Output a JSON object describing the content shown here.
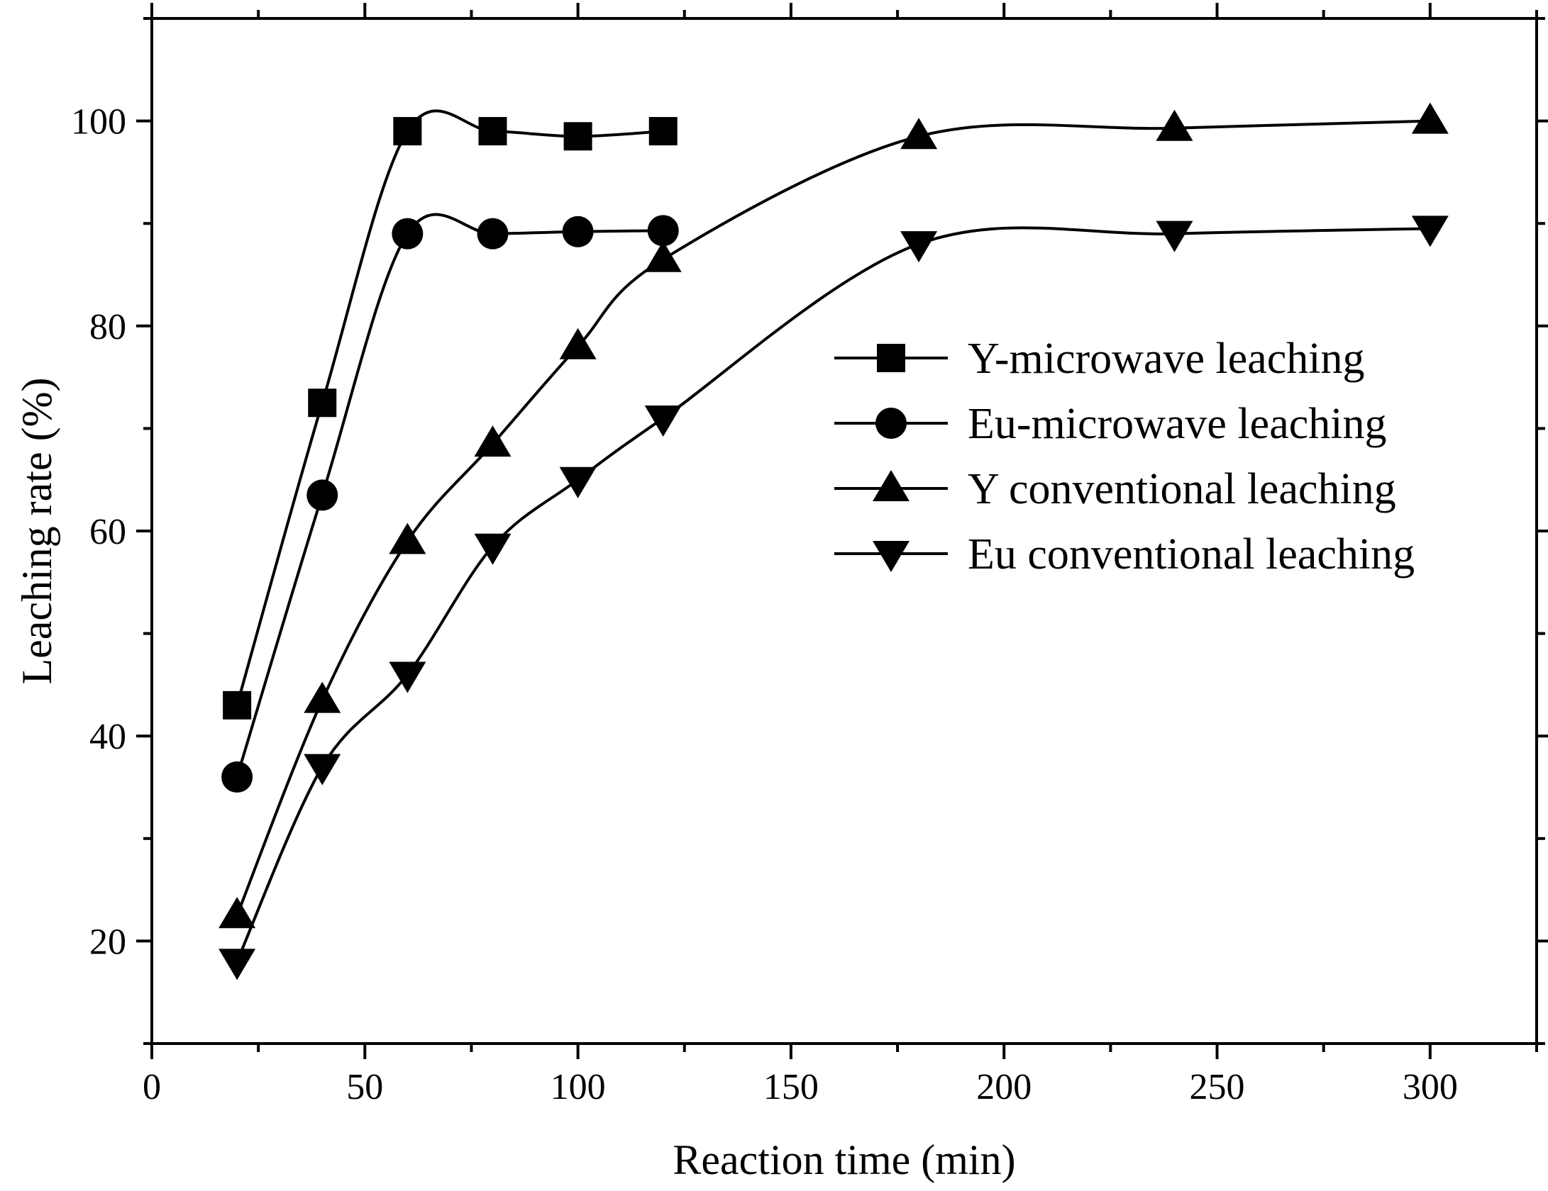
{
  "chart_data": {
    "type": "line",
    "title": "",
    "xlabel": "Reaction time (min)",
    "ylabel": "Leaching rate (%)",
    "xlim": [
      0,
      325
    ],
    "ylim": [
      10,
      110
    ],
    "x_ticks": [
      0,
      50,
      100,
      150,
      200,
      250,
      300
    ],
    "y_ticks": [
      20,
      40,
      60,
      80,
      100
    ],
    "x_tick_labels": [
      "0",
      "50",
      "100",
      "150",
      "200",
      "250",
      "300"
    ],
    "y_tick_labels": [
      "20",
      "40",
      "60",
      "80",
      "100"
    ],
    "grid": false,
    "legend_position": "center-right",
    "series": [
      {
        "name": "Y-microwave leaching",
        "marker": "square",
        "x": [
          20,
          40,
          60,
          80,
          100,
          120
        ],
        "y": [
          43,
          72.5,
          99,
          99,
          98.5,
          99
        ]
      },
      {
        "name": "Eu-microwave leaching",
        "marker": "circle",
        "x": [
          20,
          40,
          60,
          80,
          100,
          120
        ],
        "y": [
          36,
          63.5,
          89,
          89,
          89.2,
          89.3
        ]
      },
      {
        "name": "Y conventional leaching",
        "marker": "triangle-up",
        "x": [
          20,
          40,
          60,
          80,
          100,
          120,
          180,
          240,
          300
        ],
        "y": [
          22.5,
          43.5,
          59,
          68.5,
          78,
          86.5,
          98.5,
          99.3,
          100
        ]
      },
      {
        "name": "Eu conventional leaching",
        "marker": "triangle-down",
        "x": [
          20,
          40,
          60,
          80,
          100,
          120,
          180,
          240,
          300
        ],
        "y": [
          18,
          37,
          46,
          58.5,
          65,
          71,
          88,
          89,
          89.5
        ]
      }
    ],
    "colors": {
      "line": "#000000",
      "marker": "#000000",
      "background": "#ffffff"
    }
  }
}
